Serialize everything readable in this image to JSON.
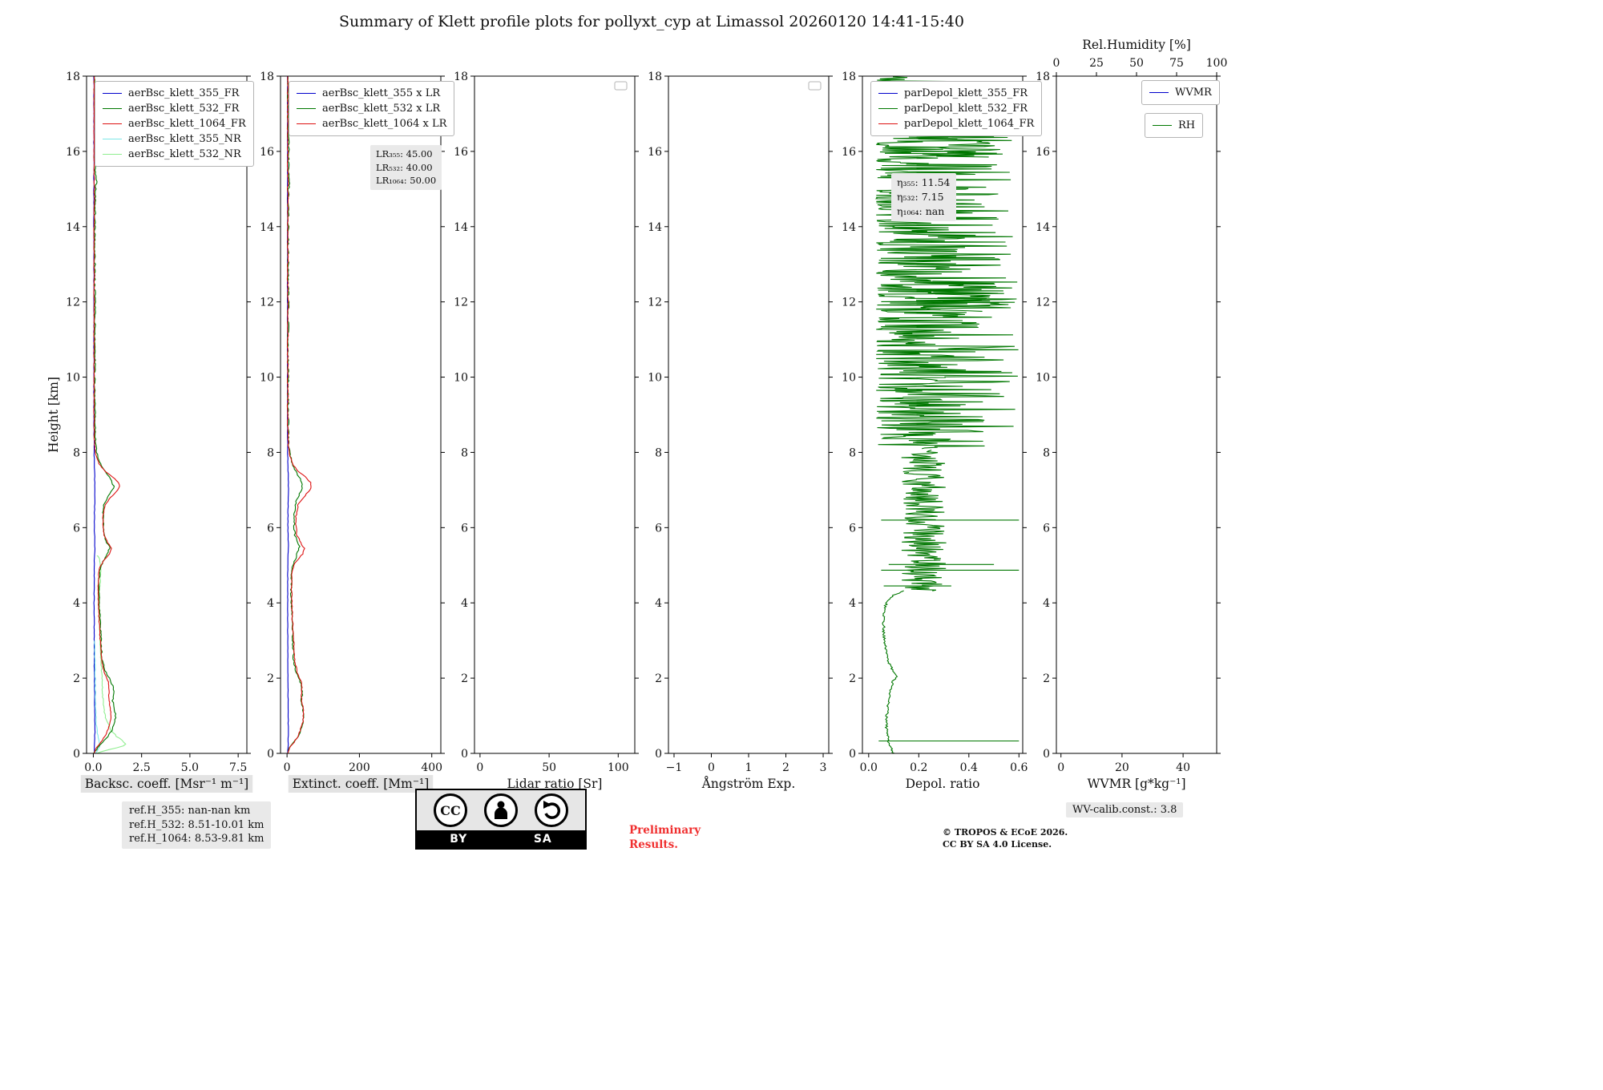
{
  "title": "Summary of Klett profile plots for pollyxt_cyp at Limassol 20260120 14:41-15:40",
  "profiles": {
    "bsc355": [
      [
        0,
        0.05
      ],
      [
        0.3,
        0.07
      ],
      [
        0.6,
        0.08
      ],
      [
        1,
        0.07
      ],
      [
        1.5,
        0.06
      ],
      [
        2,
        0.06
      ],
      [
        2.5,
        0.05
      ],
      [
        3,
        0.05
      ],
      [
        4,
        0.04
      ],
      [
        5,
        0.05
      ],
      [
        5.5,
        0.08
      ],
      [
        6,
        0.05
      ],
      [
        6.5,
        0.06
      ],
      [
        7,
        0.09
      ],
      [
        7.3,
        0.07
      ],
      [
        8,
        0.04
      ],
      [
        9,
        0.03
      ],
      [
        10,
        0.03
      ],
      [
        12,
        0.03
      ],
      [
        14,
        0.03
      ],
      [
        16,
        0.03
      ],
      [
        18,
        0.03
      ]
    ],
    "bsc532": [
      [
        0,
        0.05
      ],
      [
        0.15,
        0.2
      ],
      [
        0.3,
        0.5
      ],
      [
        0.45,
        0.75
      ],
      [
        0.6,
        0.95
      ],
      [
        0.8,
        1.1
      ],
      [
        1,
        1.15
      ],
      [
        1.2,
        1.1
      ],
      [
        1.4,
        1
      ],
      [
        1.6,
        1.05
      ],
      [
        1.8,
        1
      ],
      [
        2,
        0.85
      ],
      [
        2.2,
        0.6
      ],
      [
        2.5,
        0.45
      ],
      [
        2.8,
        0.42
      ],
      [
        3.2,
        0.38
      ],
      [
        3.6,
        0.33
      ],
      [
        4,
        0.3
      ],
      [
        4.4,
        0.28
      ],
      [
        4.8,
        0.32
      ],
      [
        5,
        0.4
      ],
      [
        5.2,
        0.6
      ],
      [
        5.4,
        0.8
      ],
      [
        5.5,
        0.85
      ],
      [
        5.6,
        0.7
      ],
      [
        5.8,
        0.55
      ],
      [
        6,
        0.5
      ],
      [
        6.2,
        0.52
      ],
      [
        6.4,
        0.5
      ],
      [
        6.6,
        0.55
      ],
      [
        6.8,
        0.75
      ],
      [
        7,
        1
      ],
      [
        7.1,
        1.05
      ],
      [
        7.25,
        0.95
      ],
      [
        7.4,
        0.75
      ],
      [
        7.6,
        0.45
      ],
      [
        7.8,
        0.28
      ],
      [
        8,
        0.18
      ],
      [
        8.2,
        0.12
      ],
      [
        8.5,
        0.09
      ],
      [
        9,
        0.08
      ],
      [
        9.5,
        0.07
      ],
      [
        10,
        0.07
      ],
      [
        10.5,
        0.08
      ],
      [
        11,
        0.07
      ],
      [
        11.5,
        0.08
      ],
      [
        12,
        0.09
      ],
      [
        12.5,
        0.07
      ],
      [
        13,
        0.08
      ],
      [
        13.5,
        0.07
      ],
      [
        14,
        0.08
      ],
      [
        14.5,
        0.09
      ],
      [
        15,
        0.12
      ],
      [
        15.2,
        0.16
      ],
      [
        15.4,
        0.12
      ],
      [
        15.7,
        0.09
      ],
      [
        16,
        0.1
      ],
      [
        16.3,
        0.14
      ],
      [
        16.5,
        0.1
      ],
      [
        17,
        0.08
      ],
      [
        17.5,
        0.07
      ],
      [
        18,
        0.06
      ]
    ],
    "bsc1064": [
      [
        0,
        0.04
      ],
      [
        0.15,
        0.15
      ],
      [
        0.3,
        0.4
      ],
      [
        0.5,
        0.65
      ],
      [
        0.7,
        0.8
      ],
      [
        0.9,
        0.9
      ],
      [
        1.1,
        0.9
      ],
      [
        1.3,
        0.85
      ],
      [
        1.5,
        0.8
      ],
      [
        1.7,
        0.82
      ],
      [
        1.9,
        0.78
      ],
      [
        2.1,
        0.6
      ],
      [
        2.4,
        0.45
      ],
      [
        2.7,
        0.4
      ],
      [
        3,
        0.36
      ],
      [
        3.5,
        0.3
      ],
      [
        4,
        0.26
      ],
      [
        4.5,
        0.25
      ],
      [
        4.9,
        0.3
      ],
      [
        5.1,
        0.5
      ],
      [
        5.3,
        0.85
      ],
      [
        5.45,
        0.95
      ],
      [
        5.6,
        0.75
      ],
      [
        5.8,
        0.55
      ],
      [
        6,
        0.5
      ],
      [
        6.3,
        0.5
      ],
      [
        6.6,
        0.6
      ],
      [
        6.8,
        0.9
      ],
      [
        7,
        1.25
      ],
      [
        7.1,
        1.35
      ],
      [
        7.2,
        1.3
      ],
      [
        7.35,
        1
      ],
      [
        7.5,
        0.6
      ],
      [
        7.7,
        0.3
      ],
      [
        7.9,
        0.15
      ],
      [
        8.1,
        0.08
      ],
      [
        8.5,
        0.05
      ],
      [
        9,
        0.04
      ],
      [
        10,
        0.04
      ],
      [
        12,
        0.04
      ],
      [
        14,
        0.04
      ],
      [
        15,
        0.05
      ],
      [
        16,
        0.04
      ],
      [
        18,
        0.04
      ]
    ],
    "bsc355nr": [
      [
        0,
        0.1
      ],
      [
        0.1,
        0.25
      ],
      [
        0.2,
        0.35
      ],
      [
        0.3,
        0.3
      ],
      [
        0.5,
        0.22
      ],
      [
        0.8,
        0.15
      ],
      [
        1.2,
        0.12
      ],
      [
        1.8,
        0.1
      ],
      [
        2.5,
        0.08
      ],
      [
        3,
        0.07
      ]
    ],
    "bsc532nr": [
      [
        0,
        0.15
      ],
      [
        0.1,
        0.8
      ],
      [
        0.18,
        1.5
      ],
      [
        0.25,
        1.7
      ],
      [
        0.32,
        1.55
      ],
      [
        0.45,
        1.2
      ],
      [
        0.6,
        0.95
      ],
      [
        0.8,
        0.75
      ],
      [
        1,
        0.6
      ],
      [
        1.3,
        0.5
      ],
      [
        1.6,
        0.48
      ],
      [
        2,
        0.44
      ],
      [
        2.5,
        0.4
      ],
      [
        3,
        0.36
      ],
      [
        3.5,
        0.32
      ],
      [
        4,
        0.3
      ],
      [
        4.5,
        0.34
      ],
      [
        4.9,
        0.4
      ],
      [
        5.1,
        0.35
      ],
      [
        5.25,
        0.25
      ]
    ]
  },
  "chart_data": [
    {
      "id": "backscatter",
      "type": "line",
      "xlabel": "Backsc. coeff. [Msr⁻¹ m⁻¹]",
      "xlabel_boxed": true,
      "ylabel": "Height [km]",
      "xlim": [
        -0.35,
        7.95
      ],
      "ylim": [
        0,
        18
      ],
      "xticks": [
        0,
        2.5,
        5,
        7.5
      ],
      "xtick_labels": [
        "0.0",
        "2.5",
        "5.0",
        "7.5"
      ],
      "yticks": [
        0,
        2,
        4,
        6,
        8,
        10,
        12,
        14,
        16,
        18
      ],
      "legend": {
        "position": "upper-left",
        "entries": [
          {
            "label": "aerBsc_klett_355_FR",
            "color": "#0000cc"
          },
          {
            "label": "aerBsc_klett_532_FR",
            "color": "#007700"
          },
          {
            "label": "aerBsc_klett_1064_FR",
            "color": "#dd1111"
          },
          {
            "label": "aerBsc_klett_355_NR",
            "color": "#7de8e8"
          },
          {
            "label": "aerBsc_klett_532_NR",
            "color": "#90ee90"
          }
        ]
      },
      "series": [
        {
          "name": "aerBsc_klett_355_FR",
          "color": "#0000cc",
          "profile": "bsc355",
          "scale": 1,
          "step": 0.08,
          "jitter": 0.012,
          "seed": 4
        },
        {
          "name": "aerBsc_klett_355_NR",
          "color": "#7de8e8",
          "profile": "bsc355nr",
          "scale": 1,
          "step": 0.06,
          "jitter": 0.02,
          "seed": 5
        },
        {
          "name": "aerBsc_klett_532_NR",
          "color": "#90ee90",
          "profile": "bsc532nr",
          "scale": 1,
          "step": 0.05,
          "jitter": 0.03,
          "seed": 6
        },
        {
          "name": "aerBsc_klett_532_FR",
          "color": "#007700",
          "profile": "bsc532",
          "scale": 1,
          "step": 0.05,
          "jitter": 0.035,
          "seed": 7
        },
        {
          "name": "aerBsc_klett_1064_FR",
          "color": "#dd1111",
          "profile": "bsc1064",
          "scale": 1,
          "step": 0.05,
          "jitter": 0.018,
          "seed": 9
        }
      ]
    },
    {
      "id": "extinction",
      "type": "line",
      "xlabel": "Extinct. coeff. [Mm⁻¹]",
      "xlabel_boxed": true,
      "xlim": [
        -18,
        425
      ],
      "ylim": [
        0,
        18
      ],
      "xticks": [
        0,
        200,
        400
      ],
      "xtick_labels": [
        "0",
        "200",
        "400"
      ],
      "yticks": [
        0,
        2,
        4,
        6,
        8,
        10,
        12,
        14,
        16,
        18
      ],
      "legend": {
        "position": "upper-left",
        "entries": [
          {
            "label": "aerBsc_klett_355 x LR",
            "color": "#0000cc"
          },
          {
            "label": "aerBsc_klett_532 x LR",
            "color": "#007700"
          },
          {
            "label": "aerBsc_klett_1064 x LR",
            "color": "#dd1111"
          }
        ]
      },
      "annotation": {
        "lines": [
          "LR₃₅₅: 45.00",
          "LR₅₃₂: 40.00",
          "LR₁₀₆₄: 50.00"
        ]
      },
      "series": [
        {
          "name": "aerBsc_klett_355xLR",
          "color": "#0000cc",
          "profile": "bsc355",
          "scale": 45,
          "step": 0.08,
          "jitter": 0.012,
          "seed": 12
        },
        {
          "name": "aerBsc_klett_532xLR",
          "color": "#007700",
          "profile": "bsc532",
          "scale": 40,
          "step": 0.05,
          "jitter": 0.05,
          "seed": 13
        },
        {
          "name": "aerBsc_klett_1064xLR",
          "color": "#dd1111",
          "profile": "bsc1064",
          "scale": 50,
          "step": 0.05,
          "jitter": 0.03,
          "seed": 14
        }
      ]
    },
    {
      "id": "lidar_ratio",
      "type": "line",
      "xlabel": "Lidar ratio [Sr]",
      "xlim": [
        -4,
        112
      ],
      "ylim": [
        0,
        18
      ],
      "xticks": [
        0,
        50,
        100
      ],
      "xtick_labels": [
        "0",
        "50",
        "100"
      ],
      "yticks": [
        0,
        2,
        4,
        6,
        8,
        10,
        12,
        14,
        16,
        18
      ],
      "empty_legend": true,
      "series": []
    },
    {
      "id": "angstrom",
      "type": "line",
      "xlabel": "Ångström Exp.",
      "xlim": [
        -1.15,
        3.15
      ],
      "ylim": [
        0,
        18
      ],
      "xticks": [
        -1,
        0,
        1,
        2,
        3
      ],
      "xtick_labels": [
        "−1",
        "0",
        "1",
        "2",
        "3"
      ],
      "yticks": [
        0,
        2,
        4,
        6,
        8,
        10,
        12,
        14,
        16,
        18
      ],
      "empty_legend": true,
      "series": []
    },
    {
      "id": "depol",
      "type": "line",
      "xlabel": "Depol. ratio",
      "xlim": [
        -0.025,
        0.615
      ],
      "ylim": [
        0,
        18
      ],
      "xticks": [
        0,
        0.2,
        0.4,
        0.6
      ],
      "xtick_labels": [
        "0.0",
        "0.2",
        "0.4",
        "0.6"
      ],
      "yticks": [
        0,
        2,
        4,
        6,
        8,
        10,
        12,
        14,
        16,
        18
      ],
      "legend": {
        "position": "upper-left",
        "entries": [
          {
            "label": "parDepol_klett_355_FR",
            "color": "#0000cc"
          },
          {
            "label": "parDepol_klett_532_FR",
            "color": "#007700"
          },
          {
            "label": "parDepol_klett_1064_FR",
            "color": "#dd1111"
          }
        ]
      },
      "annotation": {
        "lines": [
          "η₃₅₅: 11.54",
          "η₅₃₂: 7.15",
          "η₁₀₆₄: nan"
        ]
      },
      "series": [
        {
          "name": "parDepol_klett_532_FR",
          "color": "#007700",
          "segments": [
            {
              "kind": "anchors",
              "pts": [
                [
                  0,
                  0.1
                ],
                [
                  0.15,
                  0.09
                ],
                [
                  0.3,
                  0.08
                ],
                [
                  0.5,
                  0.075
                ],
                [
                  0.8,
                  0.07
                ],
                [
                  1.1,
                  0.075
                ],
                [
                  1.4,
                  0.08
                ],
                [
                  1.7,
                  0.085
                ],
                [
                  1.95,
                  0.1
                ],
                [
                  2.05,
                  0.115
                ],
                [
                  2.15,
                  0.1
                ],
                [
                  2.35,
                  0.085
                ],
                [
                  2.6,
                  0.07
                ],
                [
                  2.9,
                  0.065
                ],
                [
                  3.2,
                  0.06
                ],
                [
                  3.6,
                  0.06
                ],
                [
                  3.9,
                  0.065
                ],
                [
                  4.05,
                  0.075
                ],
                [
                  4.2,
                  0.1
                ],
                [
                  4.32,
                  0.14
                ]
              ],
              "step": 0.03,
              "jitter": 0.005,
              "seed": 3
            },
            {
              "kind": "noise",
              "h0": 4.32,
              "h1": 8.08,
              "min": 0.13,
              "max": 0.31,
              "pow": 1,
              "step": 0.022,
              "seed": 5
            },
            {
              "kind": "noise",
              "h0": 8.1,
              "h1": 18,
              "min": 0.03,
              "max": 0.6,
              "pow": 1.7,
              "step": 0.018,
              "seed": 11
            },
            {
              "kind": "noise",
              "h0": 11.75,
              "h1": 12.55,
              "min": 0.2,
              "max": 0.6,
              "pow": 0.8,
              "step": 0.02,
              "seed": 13
            },
            {
              "kind": "noise",
              "h0": 15.85,
              "h1": 16.45,
              "min": 0.15,
              "max": 0.6,
              "pow": 0.8,
              "step": 0.02,
              "seed": 17
            },
            {
              "kind": "hspike",
              "h": 0.33,
              "x0": 0.04,
              "x1": 0.6
            },
            {
              "kind": "hspike",
              "h": 4.45,
              "x0": 0.06,
              "x1": 0.33
            },
            {
              "kind": "hspike",
              "h": 4.87,
              "x0": 0.05,
              "x1": 0.6
            },
            {
              "kind": "hspike",
              "h": 5.02,
              "x0": 0.08,
              "x1": 0.5
            },
            {
              "kind": "hspike",
              "h": 6.2,
              "x0": 0.05,
              "x1": 0.6
            }
          ]
        }
      ]
    },
    {
      "id": "wvmr",
      "type": "line",
      "xlabel": "WVMR [g*kg⁻¹]",
      "xlim": [
        -1.5,
        51
      ],
      "ylim": [
        0,
        18
      ],
      "xticks": [
        0,
        20,
        40
      ],
      "xtick_labels": [
        "0",
        "20",
        "40"
      ],
      "yticks": [
        0,
        2,
        4,
        6,
        8,
        10,
        12,
        14,
        16,
        18
      ],
      "top_axis": {
        "label": "Rel.Humidity [%]",
        "lim": [
          0,
          100
        ],
        "ticks": [
          0,
          25,
          50,
          75,
          100
        ],
        "labels": [
          "0",
          "25",
          "50",
          "75",
          "100"
        ]
      },
      "legend": {
        "position": "upper-right",
        "entries": [
          {
            "label": "WVMR",
            "color": "#0000cc"
          }
        ]
      },
      "legend2": {
        "position": "upper-right",
        "entries": [
          {
            "label": "RH",
            "color": "#007700"
          }
        ]
      },
      "series": []
    }
  ],
  "footer": {
    "refh_lines": [
      "ref.H_355: nan-nan km",
      "ref.H_532: 8.51-10.01 km",
      "ref.H_1064: 8.53-9.81 km"
    ],
    "cc_badge": {
      "logo": "CC",
      "by": "BY",
      "sa": "SA"
    },
    "preliminary": [
      "Preliminary",
      "Results."
    ],
    "copyright": [
      "© TROPOS & ECoE 2026.",
      "CC BY SA 4.0 License."
    ],
    "wv_calib": "WV-calib.const.: 3.8"
  }
}
